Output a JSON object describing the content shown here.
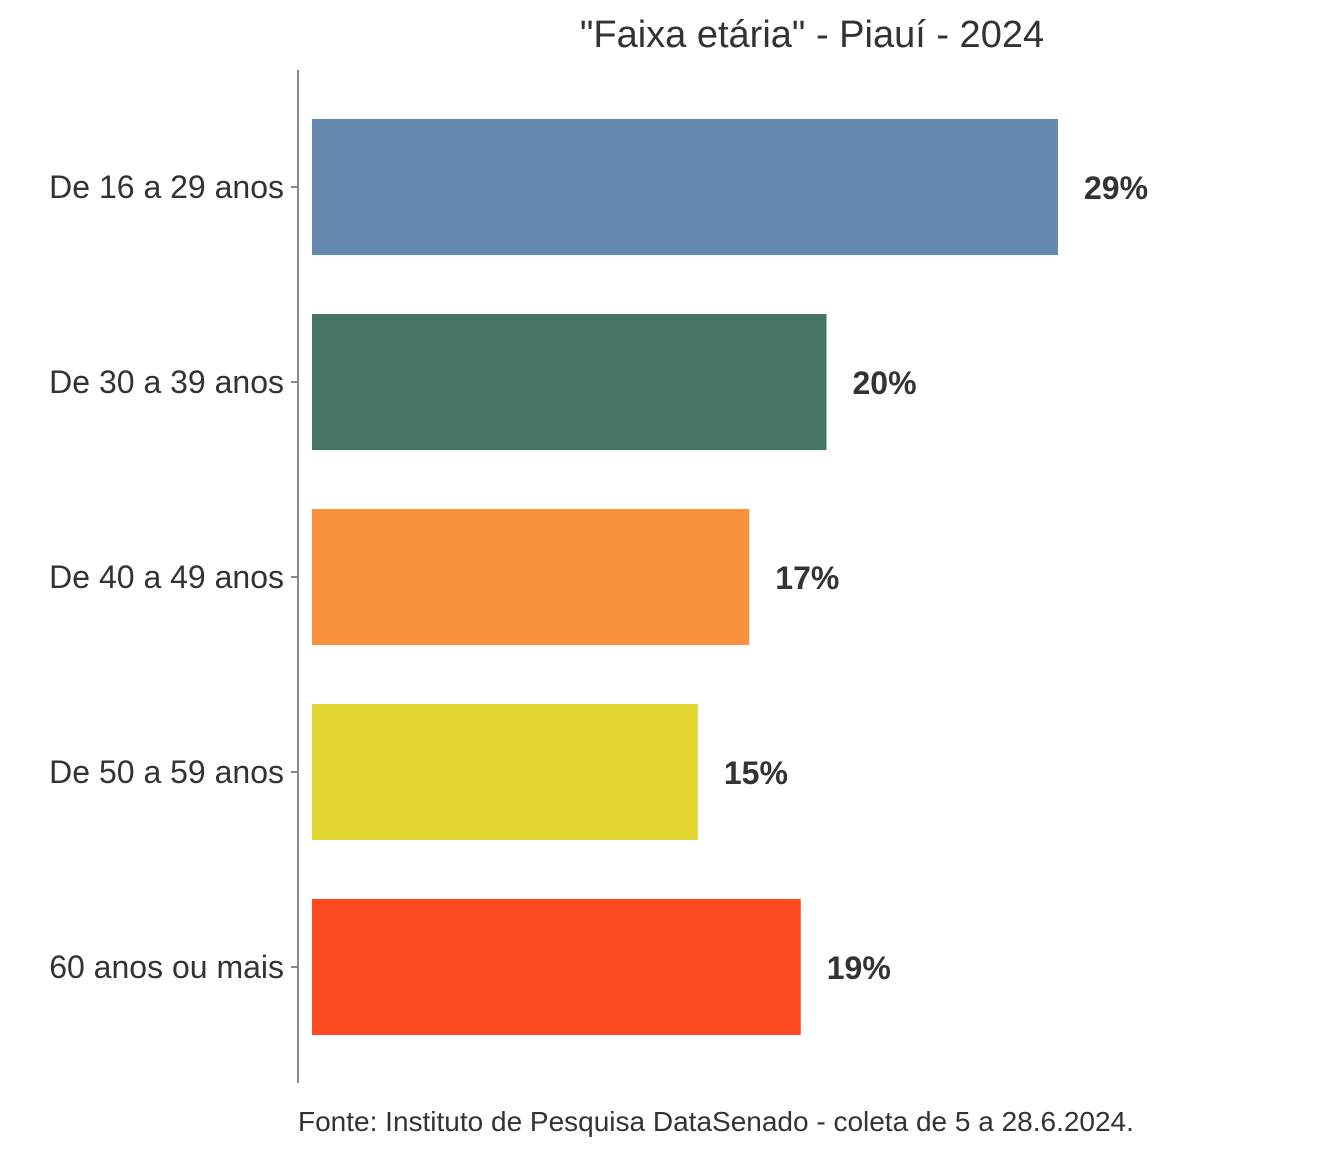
{
  "chart_data": {
    "type": "bar",
    "orientation": "horizontal",
    "title": "\"Faixa etária\" - Piauí - 2024",
    "caption": "Fonte: Instituto de Pesquisa DataSenado - coleta de 5 a 28.6.2024.",
    "categories": [
      "De 16 a 29 anos",
      "De 30 a 39 anos",
      "De 40 a 49 anos",
      "De 50 a 59 anos",
      "60 anos ou mais"
    ],
    "values": [
      29,
      20,
      17,
      15,
      19
    ],
    "value_labels": [
      "29%",
      "20%",
      "17%",
      "15%",
      "19%"
    ],
    "colors": [
      "#6689b0",
      "#467563",
      "#f9923d",
      "#e4d734",
      "#fe4a21"
    ],
    "xlim": [
      0,
      29
    ],
    "grid": false,
    "legend": "none"
  }
}
